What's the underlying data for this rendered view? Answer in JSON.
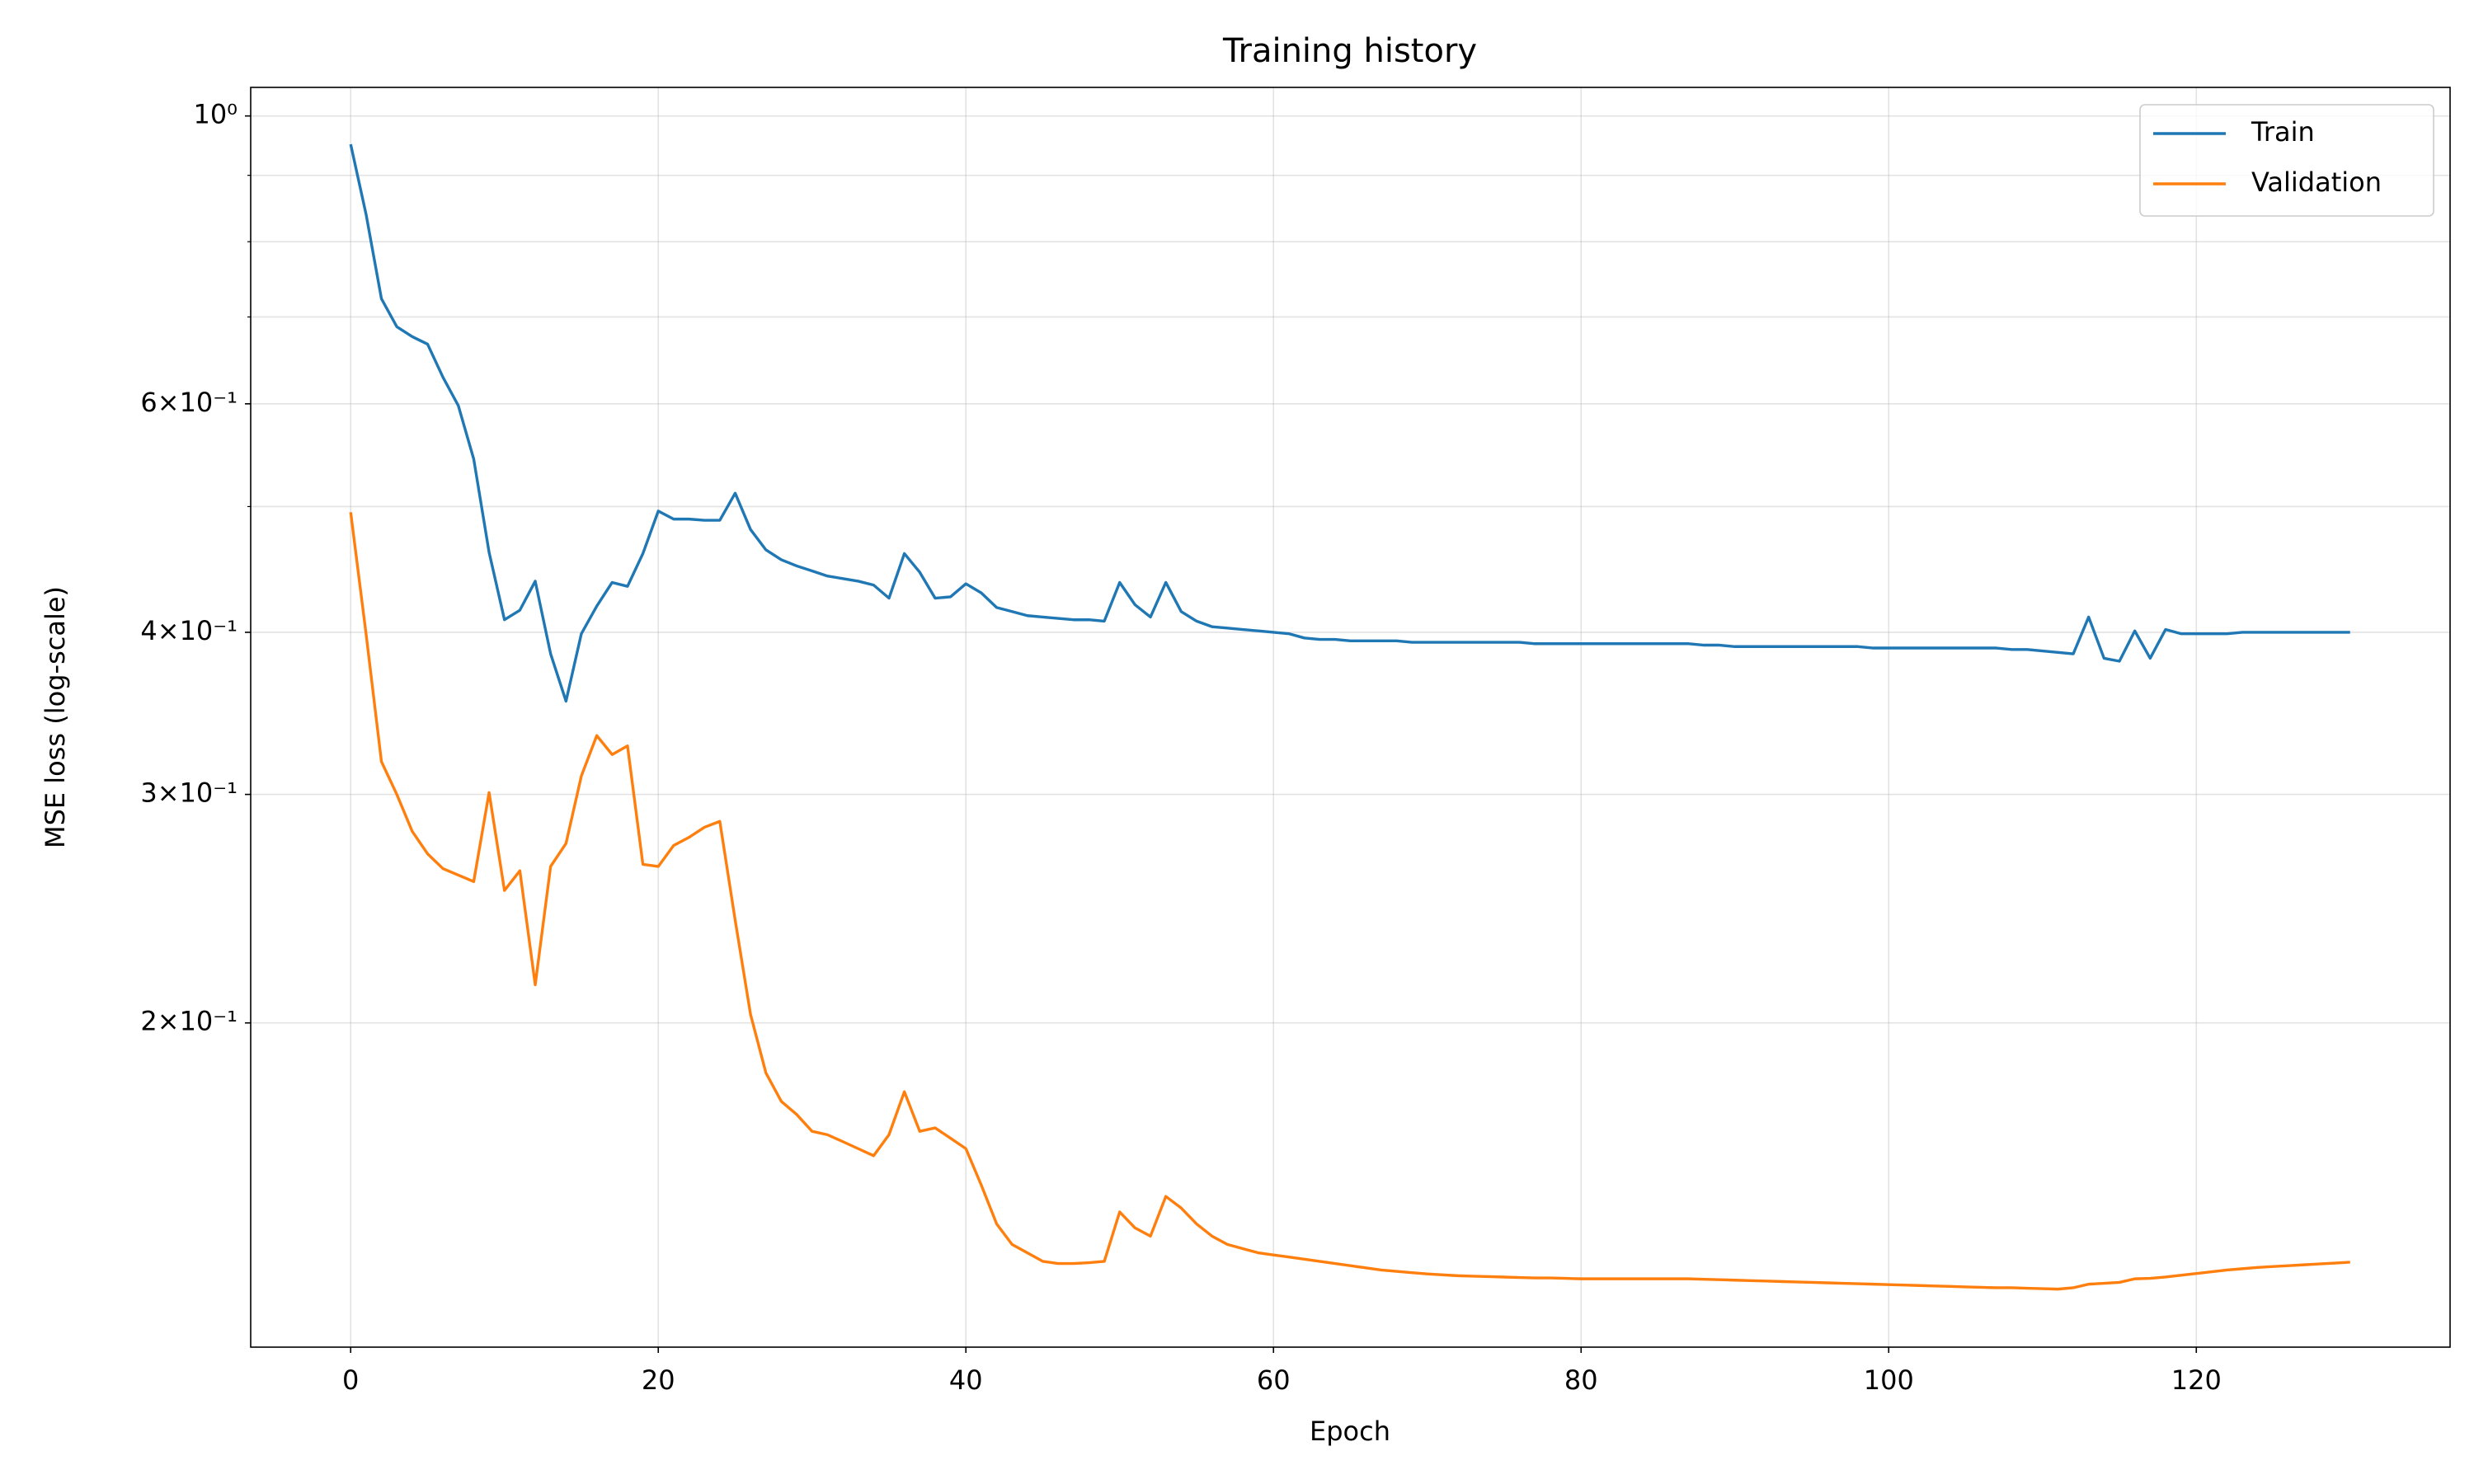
{
  "chart_data": {
    "type": "line",
    "title": "Training history",
    "x_label": "Epoch",
    "y_label": "MSE loss (log-scale)",
    "x": [
      0,
      1,
      2,
      3,
      4,
      5,
      6,
      7,
      8,
      9,
      10,
      11,
      12,
      13,
      14,
      15,
      16,
      17,
      18,
      19,
      20,
      21,
      22,
      23,
      24,
      25,
      26,
      27,
      28,
      29,
      30,
      31,
      32,
      33,
      34,
      35,
      36,
      37,
      38,
      39,
      40,
      41,
      42,
      43,
      44,
      45,
      46,
      47,
      48,
      49,
      50,
      51,
      52,
      53,
      54,
      55,
      56,
      57,
      58,
      59,
      60,
      61,
      62,
      63,
      64,
      65,
      66,
      67,
      68,
      69,
      70,
      71,
      72,
      73,
      74,
      75,
      76,
      77,
      78,
      79,
      80,
      81,
      82,
      83,
      84,
      85,
      86,
      87,
      88,
      89,
      90,
      91,
      92,
      93,
      94,
      95,
      96,
      97,
      98,
      99,
      100,
      101,
      102,
      103,
      104,
      105,
      106,
      107,
      108,
      109,
      110,
      111,
      112,
      113,
      114,
      115,
      116,
      117,
      118,
      119,
      120,
      121,
      122,
      123,
      124,
      125,
      126,
      127,
      128,
      129,
      130
    ],
    "series": [
      {
        "name": "Train",
        "color": "#1f77b4",
        "values": [
          0.951,
          0.84,
          0.723,
          0.688,
          0.676,
          0.667,
          0.629,
          0.598,
          0.544,
          0.461,
          0.409,
          0.416,
          0.438,
          0.385,
          0.354,
          0.399,
          0.419,
          0.437,
          0.434,
          0.46,
          0.496,
          0.489,
          0.489,
          0.488,
          0.488,
          0.512,
          0.48,
          0.463,
          0.455,
          0.45,
          0.446,
          0.442,
          0.44,
          0.438,
          0.435,
          0.425,
          0.46,
          0.445,
          0.425,
          0.426,
          0.436,
          0.429,
          0.418,
          0.415,
          0.412,
          0.411,
          0.41,
          0.409,
          0.409,
          0.408,
          0.437,
          0.42,
          0.411,
          0.437,
          0.415,
          0.408,
          0.404,
          0.403,
          0.402,
          0.401,
          0.4,
          0.399,
          0.396,
          0.395,
          0.395,
          0.394,
          0.394,
          0.394,
          0.394,
          0.393,
          0.393,
          0.393,
          0.393,
          0.393,
          0.393,
          0.393,
          0.393,
          0.392,
          0.392,
          0.392,
          0.392,
          0.392,
          0.392,
          0.392,
          0.392,
          0.392,
          0.392,
          0.392,
          0.391,
          0.391,
          0.39,
          0.39,
          0.39,
          0.39,
          0.39,
          0.39,
          0.39,
          0.39,
          0.39,
          0.389,
          0.389,
          0.389,
          0.389,
          0.389,
          0.389,
          0.389,
          0.389,
          0.389,
          0.388,
          0.388,
          0.387,
          0.386,
          0.385,
          0.411,
          0.382,
          0.38,
          0.401,
          0.382,
          0.402,
          0.399,
          0.399,
          0.399,
          0.399,
          0.4,
          0.4,
          0.4,
          0.4,
          0.4,
          0.4,
          0.4,
          0.4
        ]
      },
      {
        "name": "Validation",
        "color": "#ff7f0e",
        "values": [
          0.495,
          0.399,
          0.318,
          0.3,
          0.281,
          0.27,
          0.263,
          0.26,
          0.257,
          0.301,
          0.253,
          0.262,
          0.214,
          0.264,
          0.275,
          0.31,
          0.333,
          0.322,
          0.327,
          0.265,
          0.264,
          0.274,
          0.278,
          0.283,
          0.286,
          0.24,
          0.203,
          0.183,
          0.174,
          0.17,
          0.165,
          0.164,
          0.162,
          0.16,
          0.158,
          0.164,
          0.177,
          0.165,
          0.166,
          0.163,
          0.16,
          0.15,
          0.14,
          0.135,
          0.133,
          0.131,
          0.1305,
          0.1305,
          0.1307,
          0.131,
          0.143,
          0.139,
          0.137,
          0.147,
          0.144,
          0.14,
          0.137,
          0.135,
          0.134,
          0.133,
          0.1325,
          0.132,
          0.1315,
          0.131,
          0.1305,
          0.13,
          0.1295,
          0.129,
          0.1287,
          0.1284,
          0.1281,
          0.1279,
          0.1277,
          0.1276,
          0.1275,
          0.1274,
          0.1273,
          0.1272,
          0.1272,
          0.1271,
          0.127,
          0.127,
          0.127,
          0.127,
          0.127,
          0.127,
          0.127,
          0.127,
          0.1269,
          0.1268,
          0.1267,
          0.1266,
          0.1265,
          0.1264,
          0.1263,
          0.1262,
          0.1261,
          0.126,
          0.1259,
          0.1258,
          0.1257,
          0.1256,
          0.1255,
          0.1254,
          0.1253,
          0.1252,
          0.1251,
          0.125,
          0.125,
          0.1249,
          0.1248,
          0.1247,
          0.125,
          0.1258,
          0.126,
          0.1262,
          0.127,
          0.1271,
          0.1274,
          0.1278,
          0.1282,
          0.1286,
          0.129,
          0.1293,
          0.1296,
          0.1298,
          0.13,
          0.1302,
          0.1304,
          0.1306,
          0.1308
        ]
      }
    ],
    "xlim": [
      -6.5,
      136.5
    ],
    "xticks": [
      0,
      20,
      40,
      60,
      80,
      100,
      120
    ],
    "yscale": "log",
    "ylim": [
      0.1125,
      1.052
    ],
    "yticks": [
      {
        "value": 1,
        "label": "10⁰"
      },
      {
        "value": 0.6,
        "label": "6×10⁻¹"
      },
      {
        "value": 0.4,
        "label": "4×10⁻¹"
      },
      {
        "value": 0.3,
        "label": "3×10⁻¹"
      },
      {
        "value": 0.2,
        "label": "2×10⁻¹"
      }
    ],
    "yticks_minor": [
      0.5,
      0.7,
      0.8,
      0.9
    ],
    "grid": true,
    "legend": "upper right"
  }
}
